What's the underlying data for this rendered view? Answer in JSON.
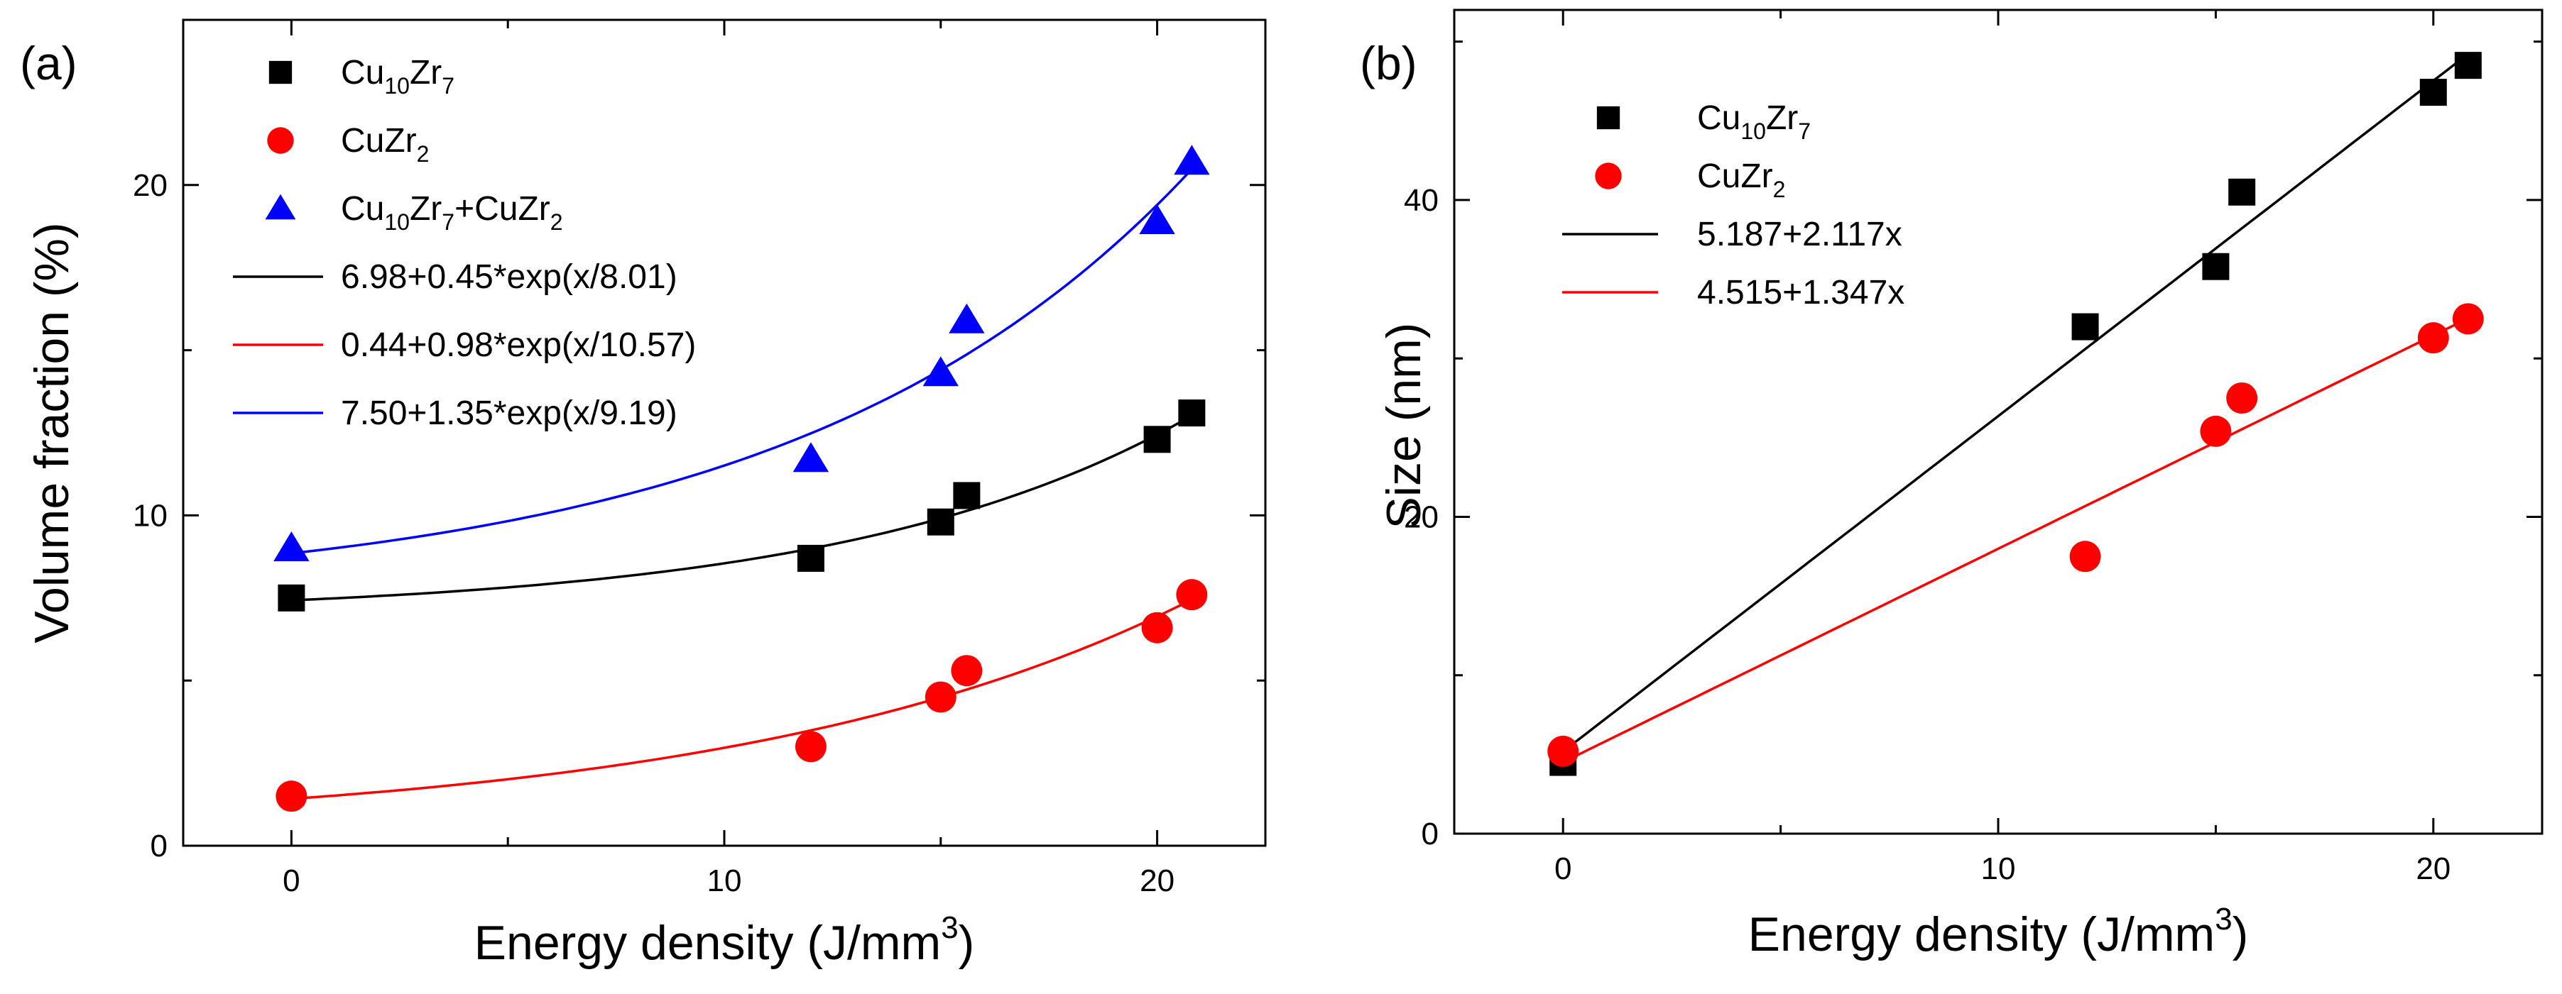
{
  "chart_data": [
    {
      "panel_label": "(a)",
      "type": "scatter",
      "xlabel": "Energy density (J/mm",
      "xlabel_sup": "3",
      "xlabel_end": ")",
      "ylabel": "Volume fraction (%)",
      "xlim": [
        -2.5,
        22.5
      ],
      "ylim": [
        0,
        25
      ],
      "xticks": [
        0,
        10,
        20
      ],
      "yticks": [
        0,
        10,
        20
      ],
      "xtick_labels": [
        "0",
        "10",
        "20"
      ],
      "ytick_labels": [
        "0",
        "10",
        "20"
      ],
      "legend_position": "top-left",
      "series": [
        {
          "name": "Cu10Zr7",
          "label_parts": [
            "Cu",
            "10",
            "Zr",
            "7"
          ],
          "marker": "square",
          "color": "#000000",
          "x": [
            0,
            12,
            15,
            15.6,
            20,
            20.8
          ],
          "y": [
            7.5,
            8.7,
            9.8,
            10.6,
            12.3,
            13.1
          ]
        },
        {
          "name": "CuZr2",
          "label_parts": [
            "CuZr",
            "2"
          ],
          "marker": "circle",
          "color": "#ff0000",
          "x": [
            0,
            12,
            15,
            15.6,
            20,
            20.8
          ],
          "y": [
            1.5,
            3.0,
            4.5,
            5.3,
            6.6,
            7.6
          ]
        },
        {
          "name": "Cu10Zr7+CuZr2",
          "label_parts": [
            "Cu",
            "10",
            "Zr",
            "7",
            "+CuZr",
            "2"
          ],
          "marker": "triangle",
          "color": "#0000ff",
          "x": [
            0,
            12,
            15,
            15.6,
            20,
            20.8
          ],
          "y": [
            9.0,
            11.7,
            14.3,
            15.9,
            18.9,
            20.7
          ]
        }
      ],
      "fits": [
        {
          "label": "6.98+0.45*exp(x/8.01)",
          "color": "#000000",
          "form": "exp",
          "a": 6.98,
          "b": 0.45,
          "c": 8.01,
          "x_range": [
            0,
            20.8
          ]
        },
        {
          "label": "0.44+0.98*exp(x/10.57)",
          "color": "#ff0000",
          "form": "exp",
          "a": 0.44,
          "b": 0.98,
          "c": 10.57,
          "x_range": [
            0,
            20.8
          ]
        },
        {
          "label": "7.50+1.35*exp(x/9.19)",
          "color": "#0000ff",
          "form": "exp",
          "a": 7.5,
          "b": 1.35,
          "c": 9.19,
          "x_range": [
            0,
            20.8
          ]
        }
      ]
    },
    {
      "panel_label": "(b)",
      "type": "scatter",
      "xlabel": "Energy density (J/mm",
      "xlabel_sup": "3",
      "xlabel_end": ")",
      "ylabel": "Size (nm)",
      "xlim": [
        -2.5,
        22.5
      ],
      "ylim": [
        0,
        52
      ],
      "xticks": [
        0,
        10,
        20
      ],
      "yticks": [
        0,
        20,
        40
      ],
      "xtick_labels": [
        "0",
        "10",
        "20"
      ],
      "ytick_labels": [
        "0",
        "20",
        "40"
      ],
      "legend_position": "top-left",
      "series": [
        {
          "name": "Cu10Zr7",
          "label_parts": [
            "Cu",
            "10",
            "Zr",
            "7"
          ],
          "marker": "square",
          "color": "#000000",
          "x": [
            0,
            12,
            15,
            15.6,
            20,
            20.8
          ],
          "y": [
            4.5,
            32.0,
            35.8,
            40.5,
            46.8,
            48.5
          ]
        },
        {
          "name": "CuZr2",
          "label_parts": [
            "CuZr",
            "2"
          ],
          "marker": "circle",
          "color": "#ff0000",
          "x": [
            0,
            12,
            15,
            15.6,
            20,
            20.8
          ],
          "y": [
            5.2,
            17.5,
            25.4,
            27.5,
            31.3,
            32.5
          ]
        }
      ],
      "fits": [
        {
          "label": "5.187+2.117x",
          "color": "#000000",
          "form": "linear",
          "a": 5.187,
          "b": 2.117,
          "x_range": [
            0,
            20.8
          ]
        },
        {
          "label": "4.515+1.347x",
          "color": "#ff0000",
          "form": "linear",
          "a": 4.515,
          "b": 1.347,
          "x_range": [
            0,
            20.8
          ]
        }
      ]
    }
  ]
}
